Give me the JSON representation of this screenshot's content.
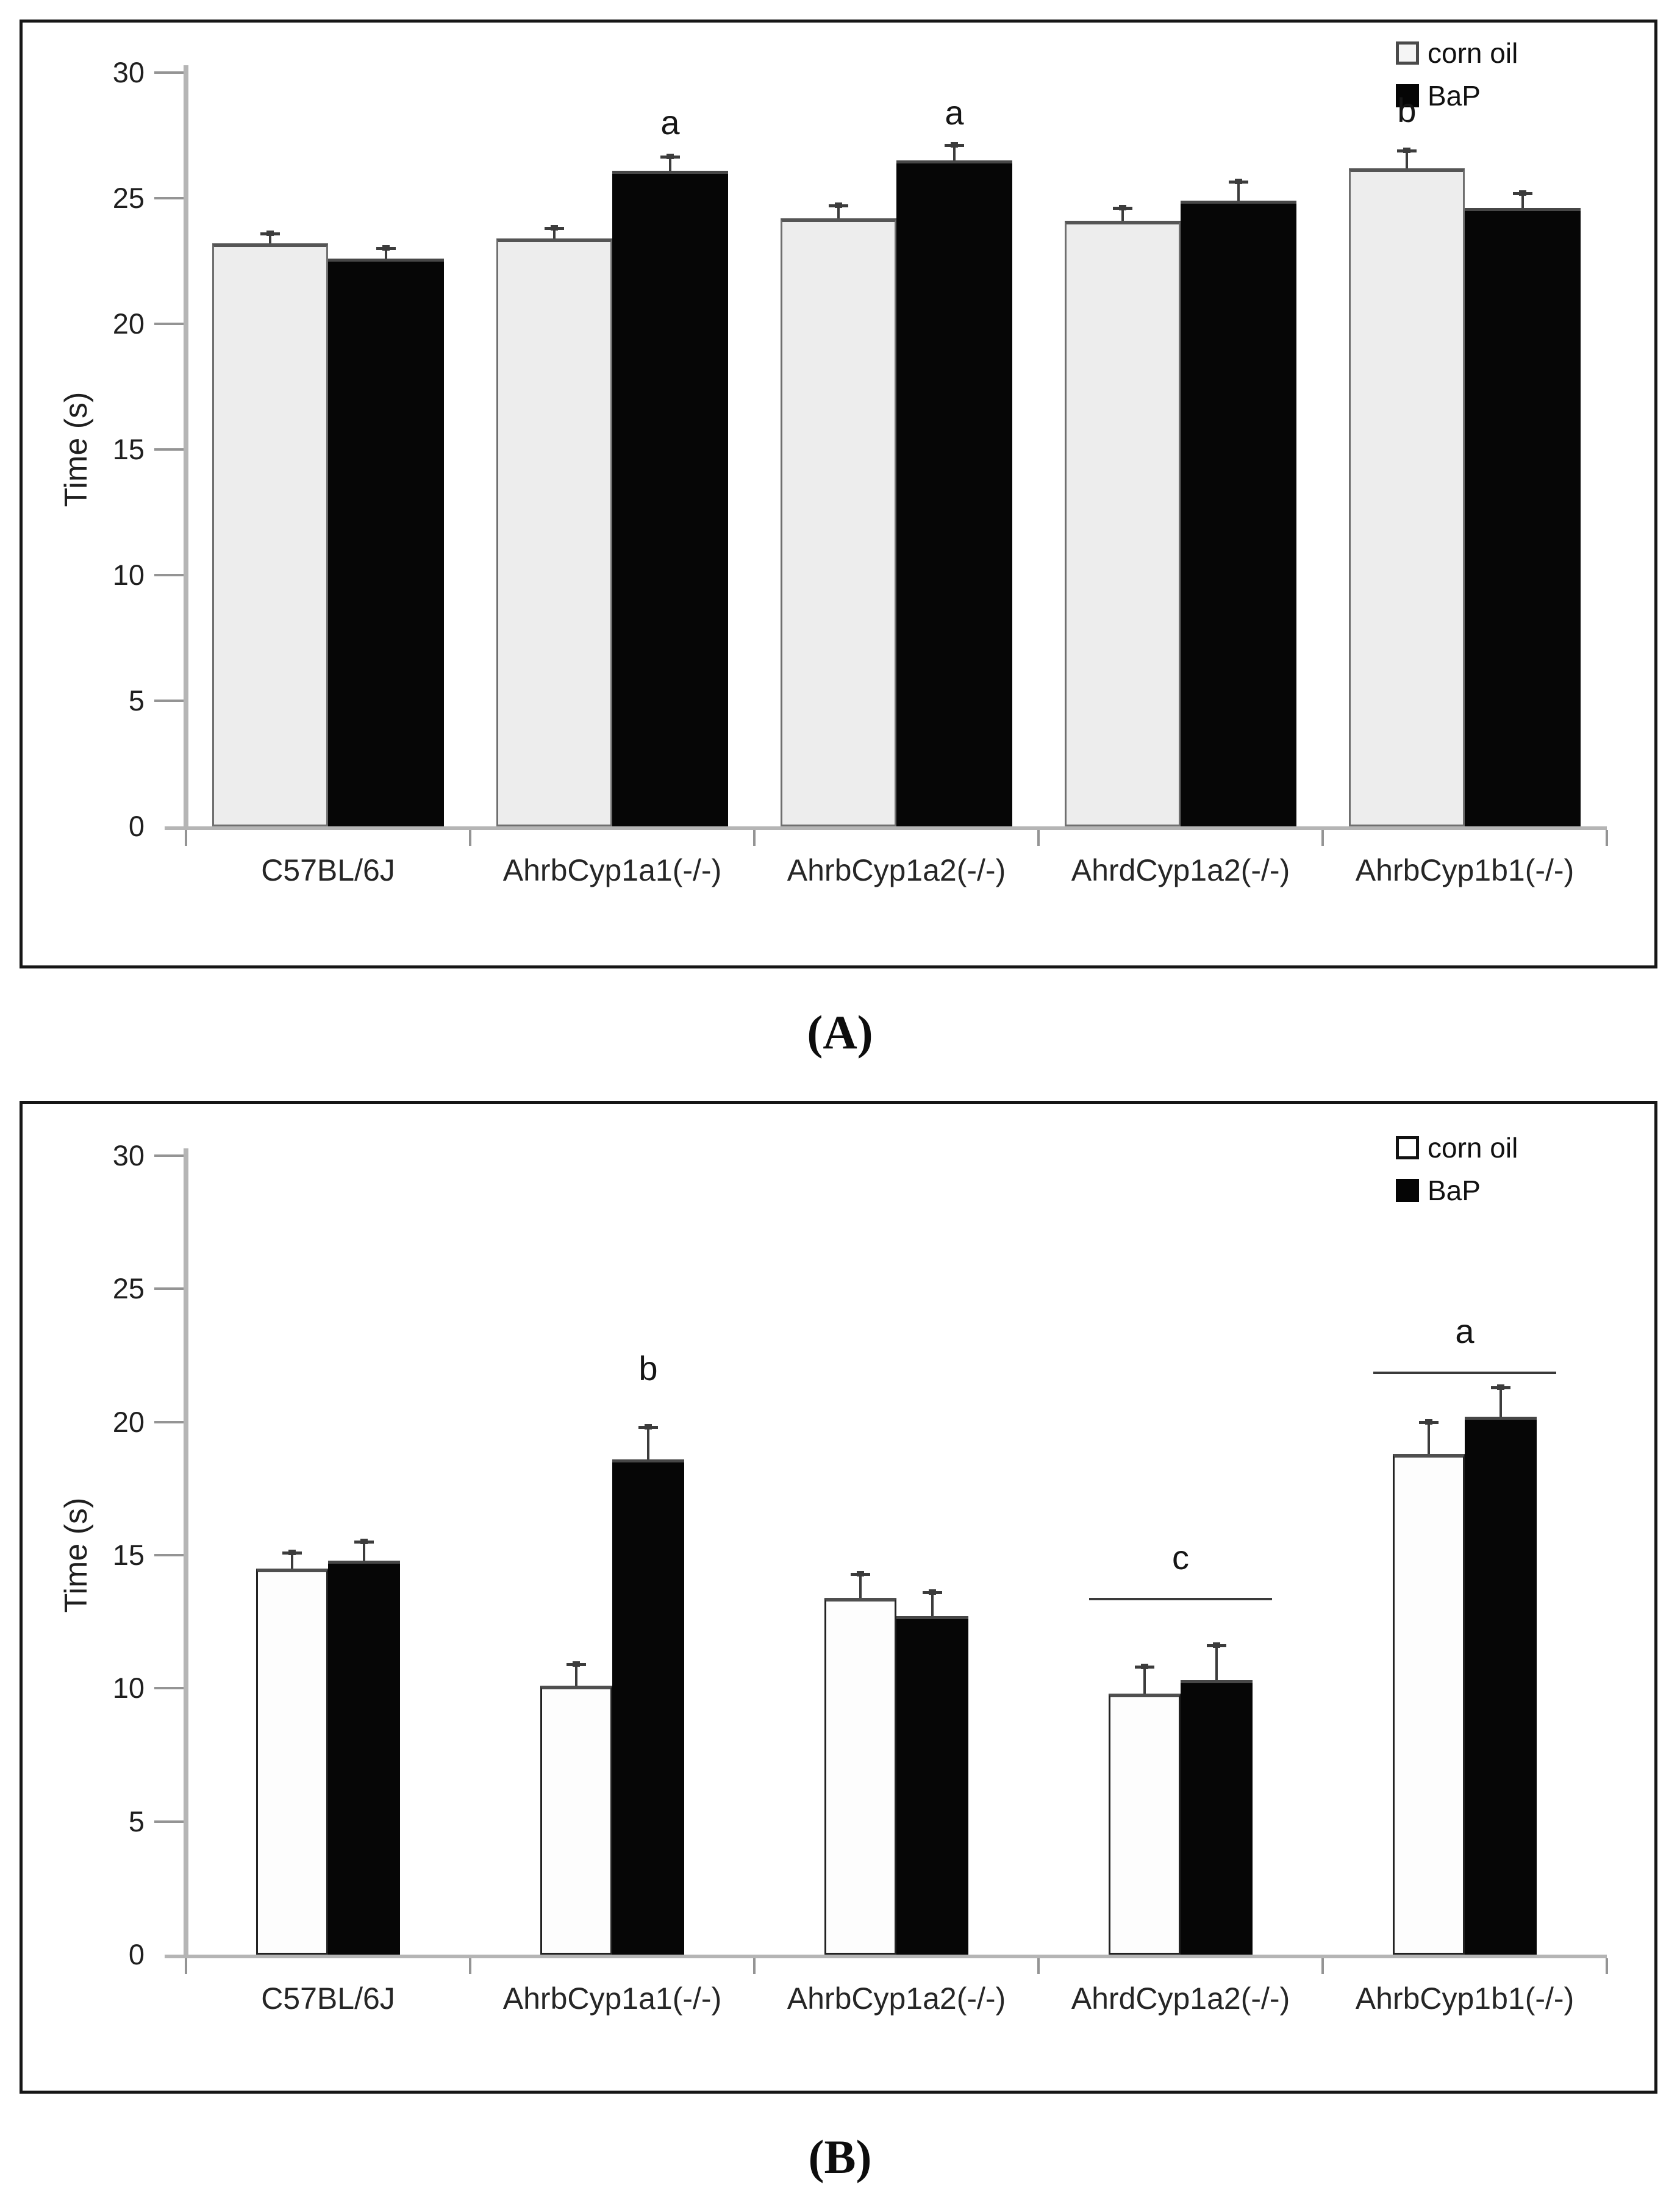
{
  "figure_title": "",
  "captions": {
    "panel_a": "(A)",
    "panel_b": "(B)"
  },
  "legend": {
    "corn_oil_label": "corn oil",
    "bap_label": "BaP"
  },
  "chart_data": [
    {
      "panel": "A",
      "type": "bar",
      "title": "",
      "xlabel": "",
      "ylabel": "Time (s)",
      "ylim": [
        0,
        30
      ],
      "yticks": [
        0,
        5,
        10,
        15,
        20,
        25,
        30
      ],
      "grid": false,
      "legend_position": "top-right",
      "legend_entries": [
        "corn oil",
        "BaP"
      ],
      "categories": [
        "C57BL/6J",
        "AhrbCyp1a1(-/-)",
        "AhrbCyp1a2(-/-)",
        "AhrdCyp1a2(-/-)",
        "AhrbCyp1b1(-/-)"
      ],
      "series": [
        {
          "name": "corn oil",
          "style": "open",
          "values": [
            23.2,
            23.4,
            24.2,
            24.1,
            26.2
          ],
          "errors_up": [
            0.4,
            0.4,
            0.5,
            0.5,
            0.7
          ]
        },
        {
          "name": "BaP",
          "style": "filled",
          "values": [
            22.6,
            26.1,
            26.5,
            24.9,
            24.6
          ],
          "errors_up": [
            0.4,
            0.55,
            0.6,
            0.75,
            0.6
          ]
        }
      ],
      "annotations": [
        {
          "text": "a",
          "series_index": 1,
          "category_index": 1,
          "value": 28.0
        },
        {
          "text": "a",
          "series_index": 1,
          "category_index": 2,
          "value": 28.4
        },
        {
          "text": "b",
          "series_index": 0,
          "category_index": 4,
          "value": 28.5
        }
      ],
      "sig_lines": [],
      "caption": "(A)"
    },
    {
      "panel": "B",
      "type": "bar",
      "title": "",
      "xlabel": "",
      "ylabel": "Time (s)",
      "ylim": [
        0,
        30
      ],
      "yticks": [
        0,
        5,
        10,
        15,
        20,
        25,
        30
      ],
      "grid": false,
      "legend_position": "top-right",
      "legend_entries": [
        "corn oil",
        "BaP"
      ],
      "categories": [
        "C57BL/6J",
        "AhrbCyp1a1(-/-)",
        "AhrbCyp1a2(-/-)",
        "AhrdCyp1a2(-/-)",
        "AhrbCyp1b1(-/-)"
      ],
      "series": [
        {
          "name": "corn oil",
          "style": "open",
          "values": [
            14.5,
            10.1,
            13.4,
            9.8,
            18.8
          ],
          "errors_up": [
            0.6,
            0.8,
            0.9,
            1.0,
            1.2
          ]
        },
        {
          "name": "BaP",
          "style": "filled",
          "values": [
            14.8,
            18.6,
            12.7,
            10.3,
            20.2
          ],
          "errors_up": [
            0.7,
            1.2,
            0.9,
            1.3,
            1.1
          ]
        }
      ],
      "annotations": [
        {
          "text": "b",
          "series_index": 1,
          "category_index": 1,
          "value": 22.0
        }
      ],
      "sig_lines": [
        {
          "text": "c",
          "category_index": 3,
          "value": 13.4,
          "letter_value": 14.9
        },
        {
          "text": "a",
          "category_index": 4,
          "value": 21.9,
          "letter_value": 23.4
        }
      ],
      "caption": "(B)"
    }
  ]
}
